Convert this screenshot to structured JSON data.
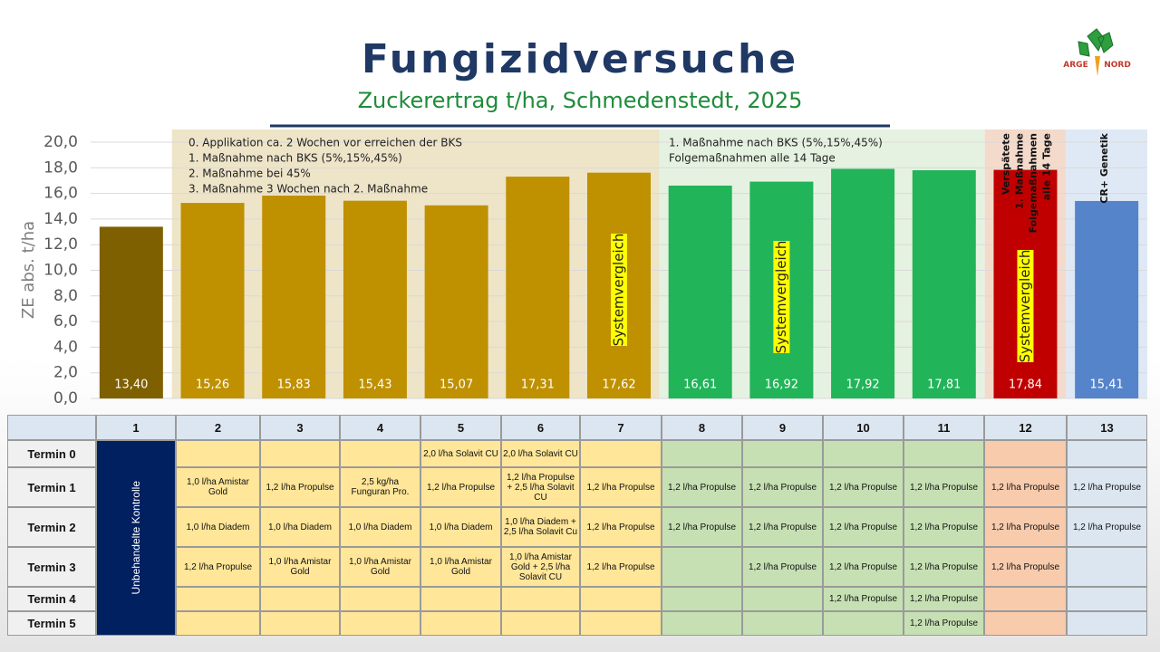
{
  "title": "Fungizidversuche",
  "subtitle": "Zuckerertrag t/ha, Schmedenstedt, 2025",
  "logo": {
    "left": "ARGE",
    "right": "NORD"
  },
  "chart_data": {
    "type": "bar",
    "ylabel": "ZE abs. t/ha",
    "values": [
      13.4,
      15.26,
      15.83,
      15.43,
      15.07,
      17.31,
      17.62,
      16.61,
      16.92,
      17.92,
      17.81,
      17.84,
      15.41
    ],
    "value_labels": [
      "13,40",
      "15,26",
      "15,83",
      "15,43",
      "15,07",
      "17,31",
      "17,62",
      "16,61",
      "16,92",
      "17,92",
      "17,81",
      "17,84",
      "15,41"
    ],
    "colors": [
      "#7f6000",
      "#bf9000",
      "#bf9000",
      "#bf9000",
      "#bf9000",
      "#bf9000",
      "#bf9000",
      "#21b459",
      "#21b459",
      "#21b459",
      "#21b459",
      "#c00000",
      "#5584cb"
    ],
    "ylim": [
      0,
      20
    ],
    "yticks": [
      {
        "value": 0,
        "label": "0,0"
      },
      {
        "value": 2,
        "label": "2,0"
      },
      {
        "value": 4,
        "label": "4,0"
      },
      {
        "value": 6,
        "label": "6,0"
      },
      {
        "value": 8,
        "label": "8,0"
      },
      {
        "value": 10,
        "label": "10,0"
      },
      {
        "value": 12,
        "label": "12,0"
      },
      {
        "value": 14,
        "label": "14,0"
      },
      {
        "value": 16,
        "label": "16,0"
      },
      {
        "value": 18,
        "label": "18,0"
      },
      {
        "value": 20,
        "label": "20,0"
      }
    ],
    "grid": true,
    "notes_group_a": [
      "0. Applikation ca. 2 Wochen vor erreichen der BKS",
      "1. Maßnahme nach BKS (5%,15%,45%)",
      "2. Maßnahme bei 45%",
      "3. Maßnahme 3 Wochen nach 2. Maßnahme"
    ],
    "notes_group_b": [
      "1. Maßnahme nach BKS (5%,15%,45%)",
      "Folgemaßnahmen alle 14 Tage"
    ],
    "notes_group_c": [
      "Verspätete",
      "1. Maßnahme",
      "Folgemaßnahmen",
      "alle 14 Tage"
    ],
    "notes_group_d": [
      "CR+ Genetik"
    ],
    "system_label": "Systemvergleich"
  },
  "table": {
    "columns": [
      "1",
      "2",
      "3",
      "4",
      "5",
      "6",
      "7",
      "8",
      "9",
      "10",
      "11",
      "12",
      "13"
    ],
    "control_label": "Unbehandelte Kontrolle",
    "rows": [
      {
        "label": "Termin 0",
        "cells": [
          null,
          null,
          null,
          "2,0 l/ha Solavit CU",
          "2,0 l/ha Solavit CU",
          null,
          null,
          null,
          null,
          null,
          null,
          null
        ]
      },
      {
        "label": "Termin 1",
        "cells": [
          "1,0 l/ha Amistar Gold",
          "1,2 l/ha Propulse",
          "2,5 kg/ha Funguran Pro.",
          "1,2 l/ha Propulse",
          "1,2 l/ha Propulse + 2,5 l/ha Solavit CU",
          "1,2 l/ha Propulse",
          "1,2 l/ha Propulse",
          "1,2 l/ha Propulse",
          "1,2 l/ha Propulse",
          "1,2 l/ha Propulse",
          "1,2 l/ha Propulse",
          "1,2 l/ha Propulse"
        ]
      },
      {
        "label": "Termin 2",
        "cells": [
          "1,0 l/ha Diadem",
          "1,0 l/ha Diadem",
          "1,0 l/ha Diadem",
          "1,0 l/ha Diadem",
          "1,0 l/ha Diadem + 2,5 l/ha Solavit Cu",
          "1,2 l/ha Propulse",
          "1,2 l/ha Propulse",
          "1,2 l/ha Propulse",
          "1,2 l/ha Propulse",
          "1,2 l/ha Propulse",
          "1,2 l/ha Propulse",
          "1,2 l/ha Propulse"
        ]
      },
      {
        "label": "Termin 3",
        "cells": [
          "1,2 l/ha Propulse",
          "1,0 l/ha Amistar Gold",
          "1,0 l/ha Amistar Gold",
          "1,0 l/ha Amistar Gold",
          "1,0 l/ha Amistar Gold + 2,5 l/ha Solavit CU",
          "1,2 l/ha Propulse",
          null,
          "1,2 l/ha Propulse",
          "1,2 l/ha Propulse",
          "1,2 l/ha Propulse",
          "1,2 l/ha Propulse",
          null
        ]
      },
      {
        "label": "Termin 4",
        "cells": [
          null,
          null,
          null,
          null,
          null,
          null,
          null,
          null,
          "1,2 l/ha Propulse",
          "1,2 l/ha Propulse",
          null,
          null
        ]
      },
      {
        "label": "Termin 5",
        "cells": [
          null,
          null,
          null,
          null,
          null,
          null,
          null,
          null,
          null,
          "1,2 l/ha Propulse",
          null,
          null
        ]
      }
    ]
  }
}
